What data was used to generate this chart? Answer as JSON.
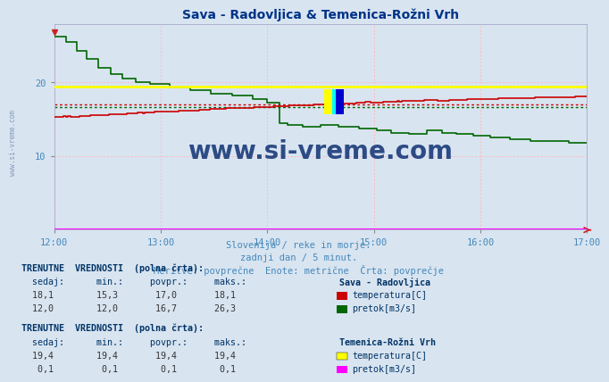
{
  "title": "Sava - Radovljica & Temenica-Rožni Vrh",
  "bg_color": "#d8e4f0",
  "plot_bg_color": "#d8e4f0",
  "ylim": [
    0,
    28
  ],
  "yticks": [
    10,
    20
  ],
  "n_points": 361,
  "xtick_labels": [
    "12:00",
    "13:00",
    "14:00",
    "15:00",
    "16:00",
    "17:00"
  ],
  "xtick_positions": [
    0,
    72,
    144,
    216,
    288,
    360
  ],
  "grid_color": "#ffbbbb",
  "sava_temp_color": "#cc0000",
  "sava_pretok_color": "#006600",
  "temenica_temp_color": "#ffff00",
  "temenica_pretok_color": "#ff00ff",
  "avg_sava_temp": 17.0,
  "avg_sava_pretok": 16.7,
  "avg_tem_temp": 19.4,
  "avg_tem_pretok": 0.1,
  "xlabel_line1": "Slovenija / reke in morje.",
  "xlabel_line2": "zadnji dan / 5 minut.",
  "xlabel_line3": "Meritve: povprečne  Enote: metrične  Črta: povprečje",
  "watermark": "www.si-vreme.com",
  "watermark_color": "#1a3a7a",
  "text_header": "TRENUTNE  VREDNOSTI  (polna črta):",
  "col_headers": "  sedaj:      min.:     povpr.:     maks.:",
  "text_sava": "Sava - Radovljica",
  "text_temenica": "Temenica-Rožni Vrh",
  "sava_row1": "  18,1        15,3       17,0       18,1",
  "sava_row2": "  12,0        12,0       16,7       26,3",
  "tem_row1": "  19,4        19,4       19,4       19,4",
  "tem_row2": "   0,1         0,1        0,1        0,1",
  "label_temp": "temperatura[C]",
  "label_pretok": "pretok[m3/s]"
}
